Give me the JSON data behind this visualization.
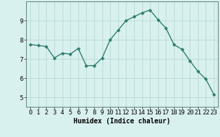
{
  "x": [
    0,
    1,
    2,
    3,
    4,
    5,
    6,
    7,
    8,
    9,
    10,
    11,
    12,
    13,
    14,
    15,
    16,
    17,
    18,
    19,
    20,
    21,
    22,
    23
  ],
  "y": [
    7.75,
    7.7,
    7.65,
    7.05,
    7.3,
    7.25,
    7.55,
    6.65,
    6.65,
    7.05,
    8.0,
    8.5,
    9.0,
    9.2,
    9.4,
    9.55,
    9.05,
    8.6,
    7.75,
    7.5,
    6.9,
    6.35,
    5.95,
    5.15
  ],
  "line_color": "#2e7d6e",
  "marker": "D",
  "markersize": 2.5,
  "linewidth": 1.0,
  "bg_color": "#d8f0ee",
  "grid_color_major": "#b8d8d4",
  "grid_color_minor": "#cce8e4",
  "axis_color": "#6a8a88",
  "xlabel": "Humidex (Indice chaleur)",
  "xlabel_fontsize": 7,
  "tick_fontsize": 6.5,
  "ylim": [
    4.5,
    10.0
  ],
  "xlim": [
    -0.5,
    23.5
  ],
  "yticks": [
    5,
    6,
    7,
    8,
    9
  ],
  "xticks": [
    0,
    1,
    2,
    3,
    4,
    5,
    6,
    7,
    8,
    9,
    10,
    11,
    12,
    13,
    14,
    15,
    16,
    17,
    18,
    19,
    20,
    21,
    22,
    23
  ]
}
